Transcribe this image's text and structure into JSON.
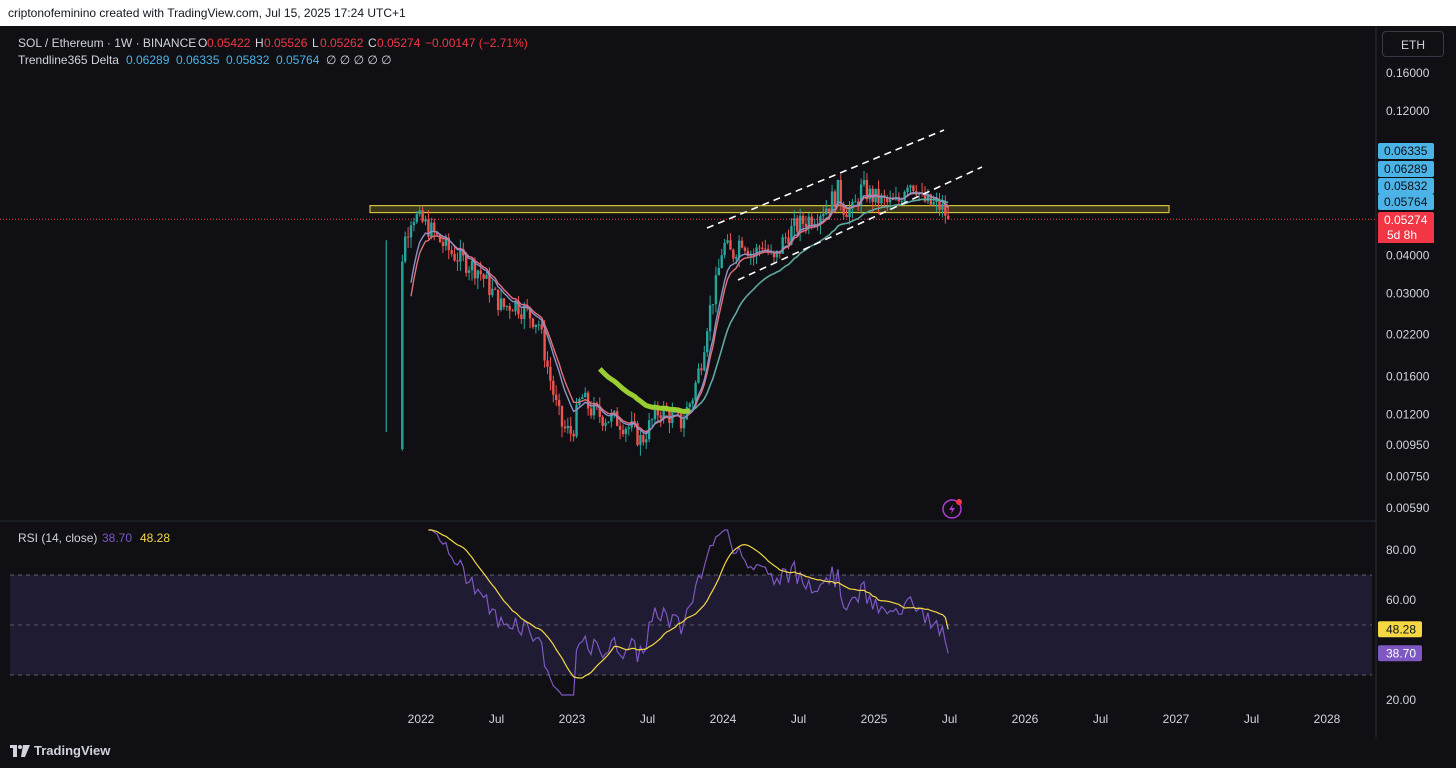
{
  "header": {
    "attribution": "criptonofeminino created with TradingView.com, Jul 15, 2025 17:24 UTC+1"
  },
  "legend": {
    "symbol": "SOL / Ethereum · 1W · BINANCE",
    "o_label": "O",
    "o_value": "0.05422",
    "h_label": "H",
    "h_value": "0.05526",
    "l_label": "L",
    "l_value": "0.05262",
    "c_label": "C",
    "c_value": "0.05274",
    "change": "−0.00147 (−2.71%)",
    "indicator_name": "Trendline365 Delta",
    "indicator_values": [
      "0.06289",
      "0.06335",
      "0.05832",
      "0.05764"
    ],
    "empty_values": "∅ ∅ ∅ ∅ ∅"
  },
  "currency_button": "ETH",
  "colors": {
    "up": "#26a69a",
    "down": "#ef5350",
    "ma_fast": "#8a93c8",
    "ma_mid": "#e0707a",
    "ma_slow": "#5fa8a0",
    "highlight": "#9acd32",
    "zone": "#d4c23a",
    "rsi": "#7e57c2",
    "rsi_ma": "#f5d742",
    "label_blue": "#4cb3e6",
    "label_red": "#f23645"
  },
  "chart_data": [
    {
      "type": "candlestick",
      "title": "",
      "scale": "log",
      "y_ticks": [
        "0.16000",
        "0.12000",
        "0.04000",
        "0.03000",
        "0.02200",
        "0.01600",
        "0.01200",
        "0.00950",
        "0.00750",
        "0.00590"
      ],
      "x_ticks": [
        "2022",
        "Jul",
        "2023",
        "Jul",
        "2024",
        "Jul",
        "2025",
        "Jul",
        "2026",
        "Jul",
        "2027",
        "Jul",
        "2028"
      ],
      "price_labels": [
        {
          "value": "0.06335",
          "color": "#4cb3e6"
        },
        {
          "value": "0.06289",
          "color": "#4cb3e6"
        },
        {
          "value": "0.05832",
          "color": "#4cb3e6"
        },
        {
          "value": "0.05764",
          "color": "#4cb3e6"
        },
        {
          "value": "0.05274",
          "color": "#f23645"
        }
      ],
      "countdown": "5d 8h",
      "last_close": 0.05274,
      "resistance_zone": [
        0.0555,
        0.0585
      ],
      "ascending_channel": {
        "upper": [
          [
            0.0545,
            0.108
          ]
        ],
        "lower": [
          [
            0.037,
            0.085
          ]
        ]
      }
    },
    {
      "type": "line",
      "title": "RSI",
      "legend_label": "RSI (14, close)",
      "rsi_value": "38.70",
      "rsi_ma_value": "48.28",
      "y_ticks": [
        "80.00",
        "60.00",
        "20.00"
      ],
      "bands": [
        70,
        50,
        30
      ],
      "ylim": [
        20,
        85
      ]
    }
  ]
}
